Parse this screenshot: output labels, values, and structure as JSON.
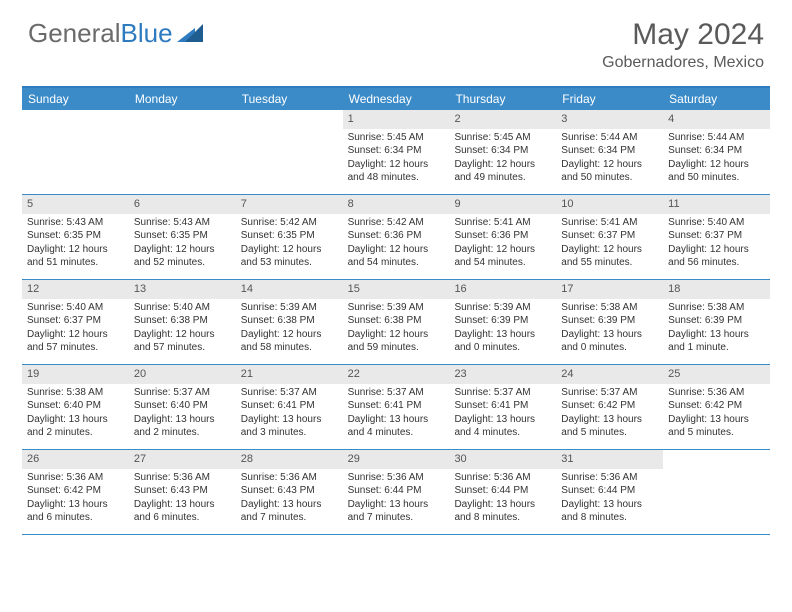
{
  "logo": {
    "text1": "General",
    "text2": "Blue"
  },
  "title": "May 2024",
  "location": "Gobernadores, Mexico",
  "dayHeaders": [
    "Sunday",
    "Monday",
    "Tuesday",
    "Wednesday",
    "Thursday",
    "Friday",
    "Saturday"
  ],
  "colors": {
    "headerBlue": "#3b8bc9",
    "borderBlue": "#2f7bbf",
    "dayNumBg": "#e9e9e9",
    "textGray": "#5a5a5a"
  },
  "weeks": [
    [
      null,
      null,
      null,
      {
        "num": "1",
        "sunrise": "Sunrise: 5:45 AM",
        "sunset": "Sunset: 6:34 PM",
        "daylight1": "Daylight: 12 hours",
        "daylight2": "and 48 minutes."
      },
      {
        "num": "2",
        "sunrise": "Sunrise: 5:45 AM",
        "sunset": "Sunset: 6:34 PM",
        "daylight1": "Daylight: 12 hours",
        "daylight2": "and 49 minutes."
      },
      {
        "num": "3",
        "sunrise": "Sunrise: 5:44 AM",
        "sunset": "Sunset: 6:34 PM",
        "daylight1": "Daylight: 12 hours",
        "daylight2": "and 50 minutes."
      },
      {
        "num": "4",
        "sunrise": "Sunrise: 5:44 AM",
        "sunset": "Sunset: 6:34 PM",
        "daylight1": "Daylight: 12 hours",
        "daylight2": "and 50 minutes."
      }
    ],
    [
      {
        "num": "5",
        "sunrise": "Sunrise: 5:43 AM",
        "sunset": "Sunset: 6:35 PM",
        "daylight1": "Daylight: 12 hours",
        "daylight2": "and 51 minutes."
      },
      {
        "num": "6",
        "sunrise": "Sunrise: 5:43 AM",
        "sunset": "Sunset: 6:35 PM",
        "daylight1": "Daylight: 12 hours",
        "daylight2": "and 52 minutes."
      },
      {
        "num": "7",
        "sunrise": "Sunrise: 5:42 AM",
        "sunset": "Sunset: 6:35 PM",
        "daylight1": "Daylight: 12 hours",
        "daylight2": "and 53 minutes."
      },
      {
        "num": "8",
        "sunrise": "Sunrise: 5:42 AM",
        "sunset": "Sunset: 6:36 PM",
        "daylight1": "Daylight: 12 hours",
        "daylight2": "and 54 minutes."
      },
      {
        "num": "9",
        "sunrise": "Sunrise: 5:41 AM",
        "sunset": "Sunset: 6:36 PM",
        "daylight1": "Daylight: 12 hours",
        "daylight2": "and 54 minutes."
      },
      {
        "num": "10",
        "sunrise": "Sunrise: 5:41 AM",
        "sunset": "Sunset: 6:37 PM",
        "daylight1": "Daylight: 12 hours",
        "daylight2": "and 55 minutes."
      },
      {
        "num": "11",
        "sunrise": "Sunrise: 5:40 AM",
        "sunset": "Sunset: 6:37 PM",
        "daylight1": "Daylight: 12 hours",
        "daylight2": "and 56 minutes."
      }
    ],
    [
      {
        "num": "12",
        "sunrise": "Sunrise: 5:40 AM",
        "sunset": "Sunset: 6:37 PM",
        "daylight1": "Daylight: 12 hours",
        "daylight2": "and 57 minutes."
      },
      {
        "num": "13",
        "sunrise": "Sunrise: 5:40 AM",
        "sunset": "Sunset: 6:38 PM",
        "daylight1": "Daylight: 12 hours",
        "daylight2": "and 57 minutes."
      },
      {
        "num": "14",
        "sunrise": "Sunrise: 5:39 AM",
        "sunset": "Sunset: 6:38 PM",
        "daylight1": "Daylight: 12 hours",
        "daylight2": "and 58 minutes."
      },
      {
        "num": "15",
        "sunrise": "Sunrise: 5:39 AM",
        "sunset": "Sunset: 6:38 PM",
        "daylight1": "Daylight: 12 hours",
        "daylight2": "and 59 minutes."
      },
      {
        "num": "16",
        "sunrise": "Sunrise: 5:39 AM",
        "sunset": "Sunset: 6:39 PM",
        "daylight1": "Daylight: 13 hours",
        "daylight2": "and 0 minutes."
      },
      {
        "num": "17",
        "sunrise": "Sunrise: 5:38 AM",
        "sunset": "Sunset: 6:39 PM",
        "daylight1": "Daylight: 13 hours",
        "daylight2": "and 0 minutes."
      },
      {
        "num": "18",
        "sunrise": "Sunrise: 5:38 AM",
        "sunset": "Sunset: 6:39 PM",
        "daylight1": "Daylight: 13 hours",
        "daylight2": "and 1 minute."
      }
    ],
    [
      {
        "num": "19",
        "sunrise": "Sunrise: 5:38 AM",
        "sunset": "Sunset: 6:40 PM",
        "daylight1": "Daylight: 13 hours",
        "daylight2": "and 2 minutes."
      },
      {
        "num": "20",
        "sunrise": "Sunrise: 5:37 AM",
        "sunset": "Sunset: 6:40 PM",
        "daylight1": "Daylight: 13 hours",
        "daylight2": "and 2 minutes."
      },
      {
        "num": "21",
        "sunrise": "Sunrise: 5:37 AM",
        "sunset": "Sunset: 6:41 PM",
        "daylight1": "Daylight: 13 hours",
        "daylight2": "and 3 minutes."
      },
      {
        "num": "22",
        "sunrise": "Sunrise: 5:37 AM",
        "sunset": "Sunset: 6:41 PM",
        "daylight1": "Daylight: 13 hours",
        "daylight2": "and 4 minutes."
      },
      {
        "num": "23",
        "sunrise": "Sunrise: 5:37 AM",
        "sunset": "Sunset: 6:41 PM",
        "daylight1": "Daylight: 13 hours",
        "daylight2": "and 4 minutes."
      },
      {
        "num": "24",
        "sunrise": "Sunrise: 5:37 AM",
        "sunset": "Sunset: 6:42 PM",
        "daylight1": "Daylight: 13 hours",
        "daylight2": "and 5 minutes."
      },
      {
        "num": "25",
        "sunrise": "Sunrise: 5:36 AM",
        "sunset": "Sunset: 6:42 PM",
        "daylight1": "Daylight: 13 hours",
        "daylight2": "and 5 minutes."
      }
    ],
    [
      {
        "num": "26",
        "sunrise": "Sunrise: 5:36 AM",
        "sunset": "Sunset: 6:42 PM",
        "daylight1": "Daylight: 13 hours",
        "daylight2": "and 6 minutes."
      },
      {
        "num": "27",
        "sunrise": "Sunrise: 5:36 AM",
        "sunset": "Sunset: 6:43 PM",
        "daylight1": "Daylight: 13 hours",
        "daylight2": "and 6 minutes."
      },
      {
        "num": "28",
        "sunrise": "Sunrise: 5:36 AM",
        "sunset": "Sunset: 6:43 PM",
        "daylight1": "Daylight: 13 hours",
        "daylight2": "and 7 minutes."
      },
      {
        "num": "29",
        "sunrise": "Sunrise: 5:36 AM",
        "sunset": "Sunset: 6:44 PM",
        "daylight1": "Daylight: 13 hours",
        "daylight2": "and 7 minutes."
      },
      {
        "num": "30",
        "sunrise": "Sunrise: 5:36 AM",
        "sunset": "Sunset: 6:44 PM",
        "daylight1": "Daylight: 13 hours",
        "daylight2": "and 8 minutes."
      },
      {
        "num": "31",
        "sunrise": "Sunrise: 5:36 AM",
        "sunset": "Sunset: 6:44 PM",
        "daylight1": "Daylight: 13 hours",
        "daylight2": "and 8 minutes."
      },
      null
    ]
  ]
}
